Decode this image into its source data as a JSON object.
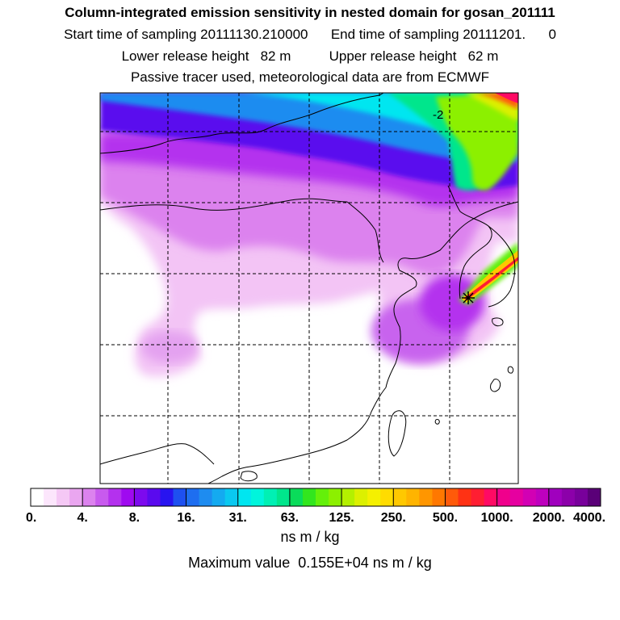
{
  "header": {
    "title": "Column-integrated emission sensitivity in nested domain for gosan_201111",
    "line2": "Start time of sampling 20111130.210000      End time of sampling 20111201.      0",
    "line3": "Lower release height   82 m          Upper release height   62 m",
    "line4": "Passive tracer used, meteorological data are from ECMWF"
  },
  "map": {
    "contour_label": "-2",
    "release_site_icon": "asterisk-icon"
  },
  "colorbar": {
    "tick_labels": [
      "0.",
      "4.",
      "8.",
      "16.",
      "31.",
      "63.",
      "125.",
      "250.",
      "500.",
      "1000.",
      "2000.",
      "4000."
    ],
    "colors": [
      "#ffffff",
      "#fce6fc",
      "#f5c8f5",
      "#eaa6f0",
      "#dc82ee",
      "#c85aee",
      "#b431ee",
      "#9f0af0",
      "#7d0aee",
      "#5a0aee",
      "#2814f0",
      "#1e50f0",
      "#1e6ef0",
      "#1e8cf0",
      "#14aaf0",
      "#0ac8f0",
      "#00e6f0",
      "#00f5dc",
      "#00f0b4",
      "#00e68c",
      "#0adc5a",
      "#32e61e",
      "#64f00a",
      "#8cf000",
      "#b4f000",
      "#dcf000",
      "#f5f000",
      "#ffdc00",
      "#ffc800",
      "#ffb400",
      "#ff9600",
      "#ff7800",
      "#ff5a0a",
      "#ff3214",
      "#ff1e32",
      "#ff0a64",
      "#f0008c",
      "#e600a0",
      "#d200b4",
      "#be00be",
      "#a000be",
      "#8c00aa",
      "#78009b",
      "#5a0078"
    ],
    "units": "ns m / kg"
  },
  "max_value_text": "Maximum value  0.155E+04 ns m / kg"
}
